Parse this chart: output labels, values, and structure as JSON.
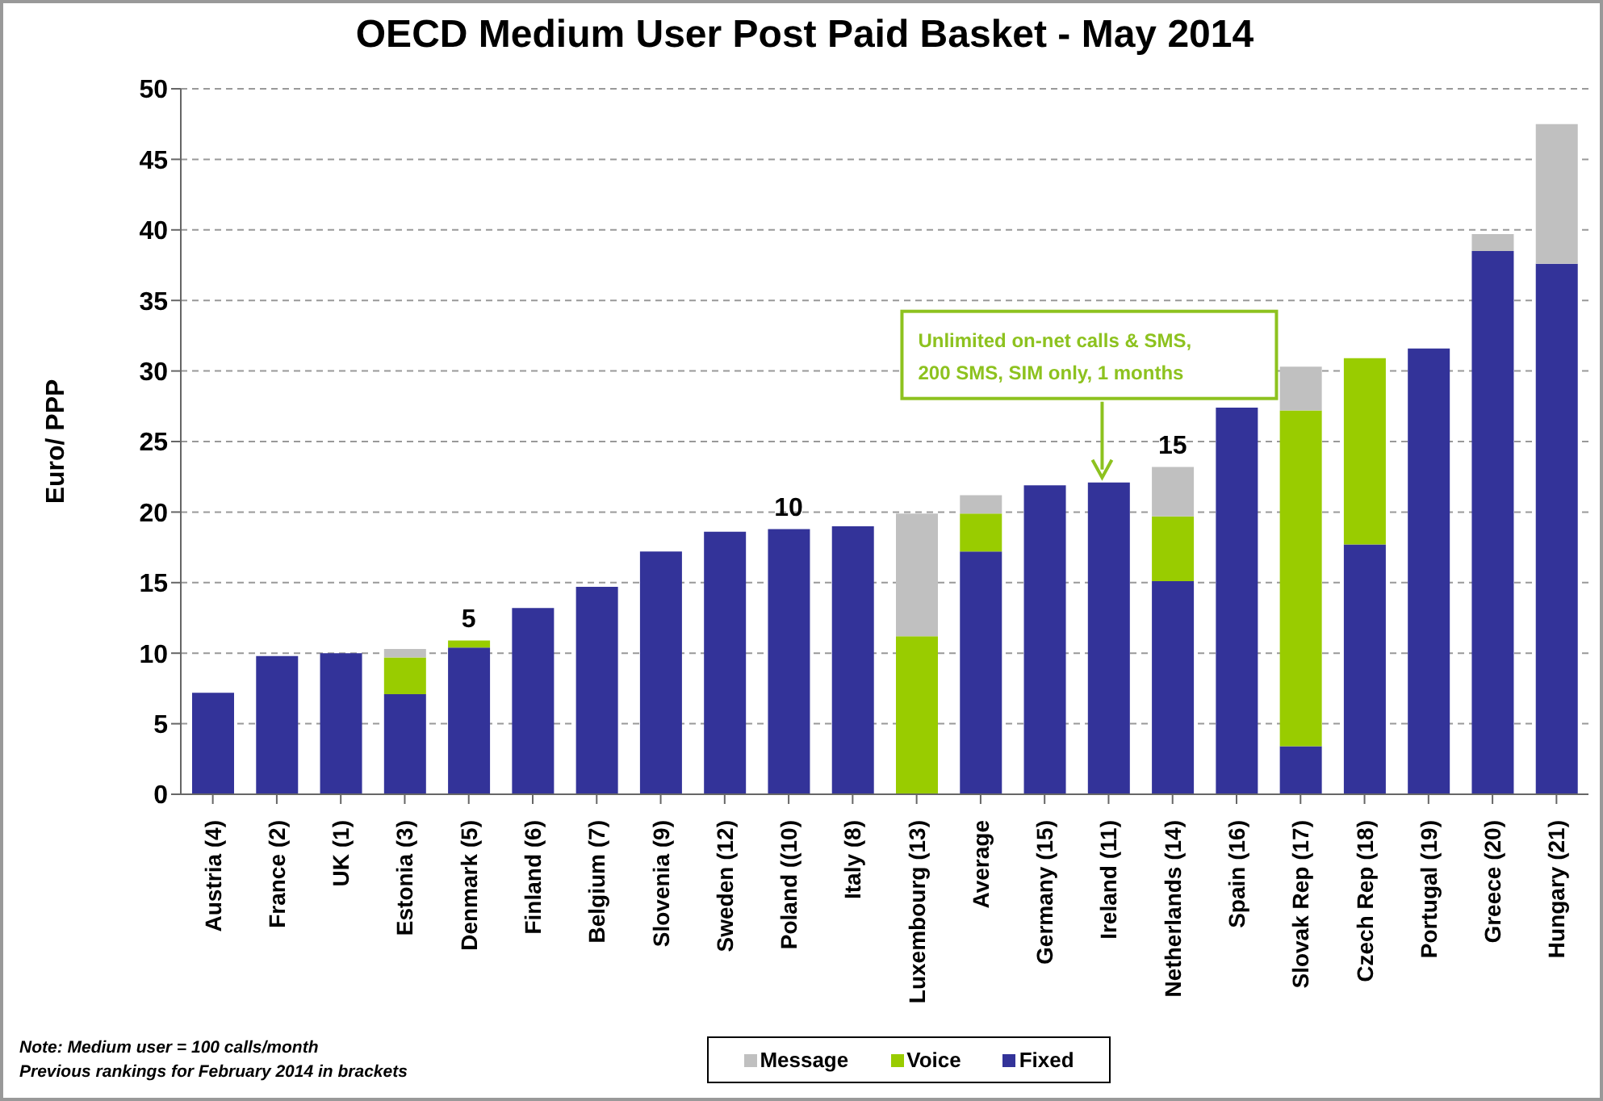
{
  "chart_data": {
    "type": "bar",
    "title": "OECD Medium User Post Paid Basket - May 2014",
    "ylabel": "Euro/ PPP",
    "stacked": true,
    "grid": "y",
    "legend": "bottom",
    "categories": [
      "Austria (4)",
      "France (2)",
      "UK (1)",
      "Estonia (3)",
      "Denmark (5)",
      "Finland (6)",
      "Belgium (7)",
      "Slovenia (9)",
      "Sweden (12)",
      "Poland ((10)",
      "Italy (8)",
      "Luxembourg (13)",
      "Average",
      "Germany (15)",
      "Ireland (11)",
      "Netherlands (14)",
      "Spain (16)",
      "Slovak Rep (17)",
      "Czech Rep (18)",
      "Portugal (19)",
      "Greece (20)",
      "Hungary (21)"
    ],
    "series": [
      {
        "name": "Fixed",
        "color": "#333399",
        "values": [
          7.2,
          9.8,
          10.0,
          7.1,
          10.4,
          13.2,
          14.7,
          17.2,
          18.6,
          18.8,
          19.0,
          0,
          17.2,
          21.9,
          22.1,
          15.1,
          27.4,
          3.4,
          17.7,
          31.6,
          38.5,
          37.6
        ]
      },
      {
        "name": "Voice",
        "color": "#99cc00",
        "values": [
          0,
          0,
          0,
          2.6,
          0.5,
          0,
          0,
          0,
          0,
          0,
          0,
          11.2,
          2.7,
          0,
          0,
          4.6,
          0,
          23.8,
          13.2,
          0,
          0,
          0
        ]
      },
      {
        "name": "Message",
        "color": "#c0c0c0",
        "values": [
          0,
          0,
          0,
          0.6,
          0,
          0,
          0,
          0,
          0,
          0,
          0,
          8.7,
          1.3,
          0,
          0,
          3.5,
          0,
          3.1,
          0,
          0,
          1.2,
          9.9
        ]
      }
    ],
    "ylim": [
      0,
      50
    ],
    "yticks": [
      0,
      5,
      10,
      15,
      20,
      25,
      30,
      35,
      40,
      45,
      50
    ],
    "annotations": [
      {
        "text": "5",
        "x": "Denmark (5)",
        "y": 10.9
      },
      {
        "text": "10",
        "x": "Poland ((10)",
        "y": 18.8
      },
      {
        "text": "15",
        "x": "Netherlands (14)",
        "y": 23.2
      },
      {
        "text": "Unlimited on-net calls & SMS, 200 SMS, SIM only, 1 months",
        "x": "Ireland (11)",
        "y": 22.1
      },
      "Note: Medium user = 100 calls/month",
      "Previous rankings for February 2014 in brackets"
    ]
  }
}
